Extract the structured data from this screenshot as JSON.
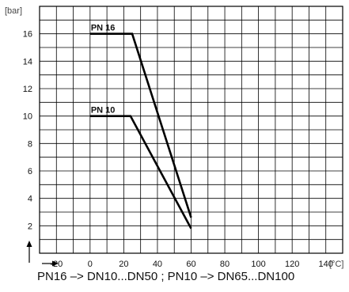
{
  "chart_data": {
    "type": "line",
    "ylabel": "[bar]",
    "xlabel": "[°C]",
    "xlim": [
      -30,
      150
    ],
    "ylim": [
      0,
      18
    ],
    "x_ticks": [
      -20,
      0,
      20,
      40,
      60,
      80,
      100,
      120,
      140
    ],
    "y_ticks": [
      2,
      4,
      6,
      8,
      10,
      12,
      14,
      16
    ],
    "grid": true,
    "series": [
      {
        "name": "PN 16",
        "x": [
          0,
          25,
          60
        ],
        "y": [
          16,
          16,
          2.6
        ]
      },
      {
        "name": "PN 10",
        "x": [
          0,
          24,
          60
        ],
        "y": [
          10,
          10,
          1.8
        ]
      }
    ],
    "caption": "PN16 –> DN10...DN50 ; PN10 –> DN65...DN100"
  }
}
